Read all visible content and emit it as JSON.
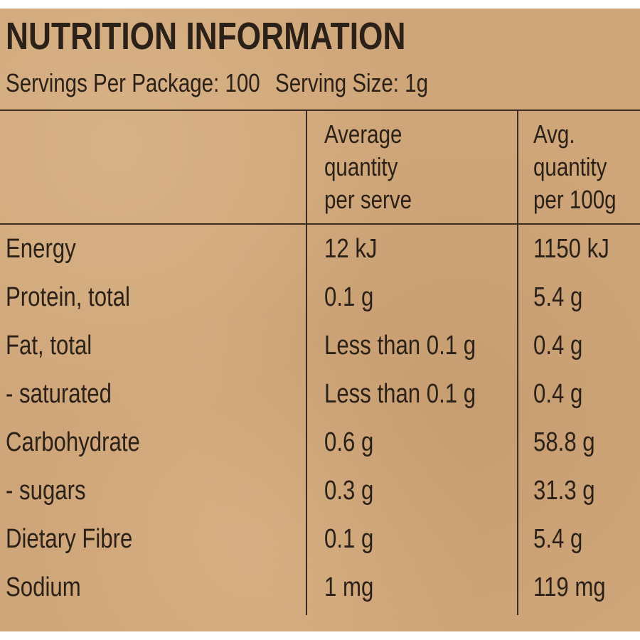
{
  "title": "NUTRITION INFORMATION",
  "servings_per_package": "Servings Per Package: 100",
  "serving_size": "Serving Size: 1g",
  "columns": {
    "per_serve": [
      "Average",
      "quantity",
      "per serve"
    ],
    "per_100g": [
      "Avg.",
      "quantity",
      "per 100g"
    ]
  },
  "rows": [
    {
      "nutrient": "Energy",
      "per_serve": "12 kJ",
      "per_100g": "1150 kJ"
    },
    {
      "nutrient": "Protein, total",
      "per_serve": "0.1 g",
      "per_100g": "5.4 g"
    },
    {
      "nutrient": "Fat, total",
      "per_serve": "Less than 0.1 g",
      "per_100g": "0.4 g"
    },
    {
      "nutrient": "- saturated",
      "per_serve": "Less than 0.1 g",
      "per_100g": "0.4 g"
    },
    {
      "nutrient": "Carbohydrate",
      "per_serve": "0.6 g",
      "per_100g": "58.8 g"
    },
    {
      "nutrient": "- sugars",
      "per_serve": "0.3 g",
      "per_100g": "31.3 g"
    },
    {
      "nutrient": "Dietary Fibre",
      "per_serve": "0.1 g",
      "per_100g": "5.4 g"
    },
    {
      "nutrient": "Sodium",
      "per_serve": "1 mg",
      "per_100g": "119 mg"
    }
  ]
}
